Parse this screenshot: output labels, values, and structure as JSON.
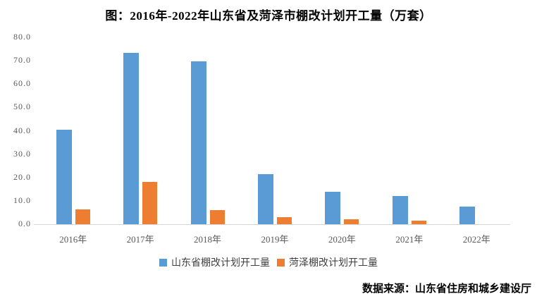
{
  "title": "图：2016年-2022年山东省及菏泽市棚改计划开工量（万套）",
  "source": "数据来源：山东省住房和城乡建设厅",
  "colors": {
    "series_shandong": "#5B9BD5",
    "series_heze": "#ED7D31",
    "axis_line": "#D6D6D6",
    "tick_text": "#595959",
    "legend_text": "#404040",
    "title_text": "#000000"
  },
  "chart_data": {
    "type": "bar",
    "categories": [
      "2016年",
      "2017年",
      "2018年",
      "2019年",
      "2020年",
      "2021年",
      "2022年"
    ],
    "series": [
      {
        "name": "山东省棚改计划开工量",
        "color": "#5B9BD5",
        "values": [
          40.5,
          73.5,
          69.7,
          21.3,
          14.0,
          12.0,
          7.4
        ]
      },
      {
        "name": "菏泽棚改计划开工量",
        "color": "#ED7D31",
        "values": [
          6.2,
          18.0,
          6.1,
          3.1,
          2.1,
          1.5,
          0
        ]
      }
    ],
    "title": "图：2016年-2022年山东省及菏泽市棚改计划开工量（万套）",
    "xlabel": "",
    "ylabel": "",
    "ylim": [
      0,
      80
    ],
    "ytick_step": 10,
    "ytick_decimals": 1,
    "grid": false,
    "legend_position": "bottom"
  }
}
